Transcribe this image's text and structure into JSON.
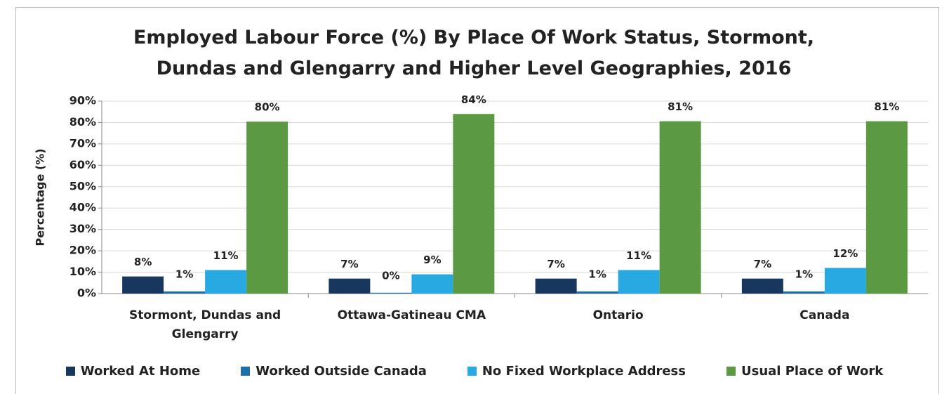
{
  "chart_data": {
    "type": "bar",
    "title": "Employed Labour Force (%) By Place Of Work Status, Stormont, Dundas and Glengarry and Higher Level Geographies, 2016",
    "y_axis_label": "Percentage (%)",
    "categories": [
      "Stormont, Dundas and Glengarry",
      "Ottawa-Gatineau CMA",
      "Ontario",
      "Canada"
    ],
    "series": [
      {
        "name": "Worked At Home",
        "color": "#17375e",
        "values": [
          8,
          7,
          7,
          7
        ],
        "value_labels": [
          "8%",
          "7%",
          "7%",
          "7%"
        ]
      },
      {
        "name": "Worked Outside Canada",
        "color": "#1f6fa8",
        "values": [
          1,
          0.4,
          1,
          1
        ],
        "value_labels": [
          "1%",
          "0%",
          "1%",
          "1%"
        ]
      },
      {
        "name": "No Fixed Workplace Address",
        "color": "#29a9e1",
        "values": [
          11,
          9,
          11,
          12
        ],
        "value_labels": [
          "11%",
          "9%",
          "11%",
          "12%"
        ]
      },
      {
        "name": "Usual Place of Work",
        "color": "#5b9a42",
        "values": [
          80.4,
          84,
          80.6,
          80.6
        ],
        "value_labels": [
          "80%",
          "84%",
          "81%",
          "81%"
        ]
      }
    ],
    "ylim": [
      0,
      90
    ],
    "yticks": [
      {
        "value": 0,
        "label": "0%"
      },
      {
        "value": 10,
        "label": "10%"
      },
      {
        "value": 20,
        "label": "20%"
      },
      {
        "value": 30,
        "label": "30%"
      },
      {
        "value": 40,
        "label": "40%"
      },
      {
        "value": 50,
        "label": "50%"
      },
      {
        "value": 60,
        "label": "60%"
      },
      {
        "value": 70,
        "label": "70%"
      },
      {
        "value": 80,
        "label": "80%"
      },
      {
        "value": 90,
        "label": "90%"
      }
    ],
    "grid": true,
    "legend": "bottom"
  }
}
